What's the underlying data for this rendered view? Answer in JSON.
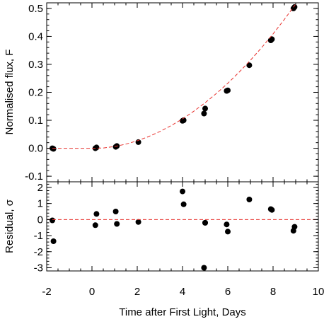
{
  "chart_data": [
    {
      "type": "scatter",
      "panel": "top",
      "xlabel": "",
      "ylabel": "Normalised flux, F",
      "xlim": [
        -2,
        10
      ],
      "ylim": [
        -0.12,
        0.52
      ],
      "yticks": [
        -0.1,
        0.0,
        0.1,
        0.2,
        0.3,
        0.4,
        0.5
      ],
      "ytick_labels": [
        "-0.1",
        "0.0",
        "0.1",
        "0.2",
        "0.3",
        "0.4",
        "0.5"
      ],
      "grid": false,
      "colors": {
        "points": "#000000",
        "fit": "#e8322e"
      },
      "series": [
        {
          "type": "scatter",
          "x": [
            -1.75,
            -1.7,
            0.15,
            0.2,
            1.05,
            1.1,
            2.05,
            4.0,
            4.05,
            4.95,
            5.0,
            5.95,
            6.0,
            6.95,
            7.9,
            7.95,
            8.9,
            8.95
          ],
          "y": [
            0.0,
            -0.002,
            0.0,
            0.003,
            0.005,
            0.008,
            0.022,
            0.098,
            0.1,
            0.124,
            0.142,
            0.205,
            0.207,
            0.297,
            0.386,
            0.39,
            0.5,
            0.505
          ]
        },
        {
          "type": "line",
          "style": "dashed",
          "x": [
            -2.0,
            0.0,
            0.5,
            1.0,
            1.5,
            2.0,
            2.5,
            3.0,
            3.5,
            4.0,
            4.5,
            5.0,
            5.5,
            6.0,
            6.5,
            7.0,
            7.5,
            8.0,
            8.5,
            9.0,
            9.5
          ],
          "y": [
            0.0,
            0.0,
            0.0008,
            0.0062,
            0.0149,
            0.0267,
            0.0417,
            0.0598,
            0.081,
            0.1052,
            0.1324,
            0.1627,
            0.1961,
            0.2325,
            0.2721,
            0.3147,
            0.3603,
            0.409,
            0.4608,
            0.5157,
            0.5736
          ]
        }
      ]
    },
    {
      "type": "scatter",
      "panel": "bottom",
      "xlabel": "Time after First Light, Days",
      "ylabel": "Residual, σ",
      "xlim": [
        -2,
        10
      ],
      "ylim": [
        -3.2,
        2.35
      ],
      "xticks": [
        -2,
        0,
        2,
        4,
        6,
        8,
        10
      ],
      "xtick_labels": [
        "-2",
        "0",
        "2",
        "4",
        "6",
        "8",
        "10"
      ],
      "yticks": [
        -3,
        -2,
        -1,
        0,
        1,
        2
      ],
      "ytick_labels": [
        "-3",
        "-2",
        "-1",
        "0",
        "1",
        "2"
      ],
      "grid": false,
      "colors": {
        "points": "#000000",
        "zero_line": "#e8322e"
      },
      "series": [
        {
          "type": "scatter",
          "x": [
            -1.75,
            -1.7,
            0.15,
            0.2,
            1.05,
            1.1,
            2.05,
            4.0,
            4.05,
            4.95,
            5.0,
            5.0,
            5.95,
            6.0,
            6.95,
            7.9,
            7.95,
            8.9,
            8.95
          ],
          "y": [
            -0.05,
            -1.35,
            -0.35,
            0.35,
            0.5,
            -0.27,
            -0.15,
            1.75,
            0.95,
            -3.0,
            -0.2,
            -0.2,
            -0.3,
            -0.75,
            1.25,
            0.65,
            0.6,
            -0.7,
            -0.45
          ]
        },
        {
          "type": "line",
          "style": "dashed",
          "x": [
            -2,
            10
          ],
          "y": [
            0,
            0
          ]
        }
      ]
    }
  ]
}
